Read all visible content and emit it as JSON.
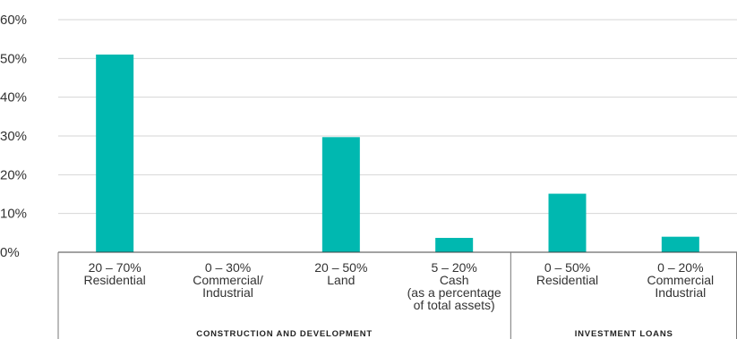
{
  "chart_data": {
    "type": "bar",
    "title": "",
    "xlabel": "",
    "ylabel": "",
    "ylim": [
      0,
      60
    ],
    "yticks": [
      "0%",
      "10%",
      "20%",
      "30%",
      "40%",
      "50%",
      "60%"
    ],
    "grid": true,
    "bar_color": "#00b8b0",
    "categories": [
      {
        "lines": [
          "20 – 70%",
          "Residential"
        ],
        "value": 51
      },
      {
        "lines": [
          "0 – 30%",
          "Commercial/",
          "Industrial"
        ],
        "value": 0
      },
      {
        "lines": [
          "20 – 50%",
          "Land"
        ],
        "value": 29.7
      },
      {
        "lines": [
          "5 – 20%",
          "Cash",
          "(as a percentage",
          "of total assets)"
        ],
        "value": 3.7
      },
      {
        "lines": [
          "0 – 50%",
          "Residential"
        ],
        "value": 15.1
      },
      {
        "lines": [
          "0 – 20%",
          "Commercial",
          "Industrial"
        ],
        "value": 4
      }
    ],
    "groups": [
      {
        "label": "CONSTRUCTION AND DEVELOPMENT",
        "start": 0,
        "end": 3
      },
      {
        "label": "INVESTMENT LOANS",
        "start": 4,
        "end": 5
      }
    ]
  }
}
